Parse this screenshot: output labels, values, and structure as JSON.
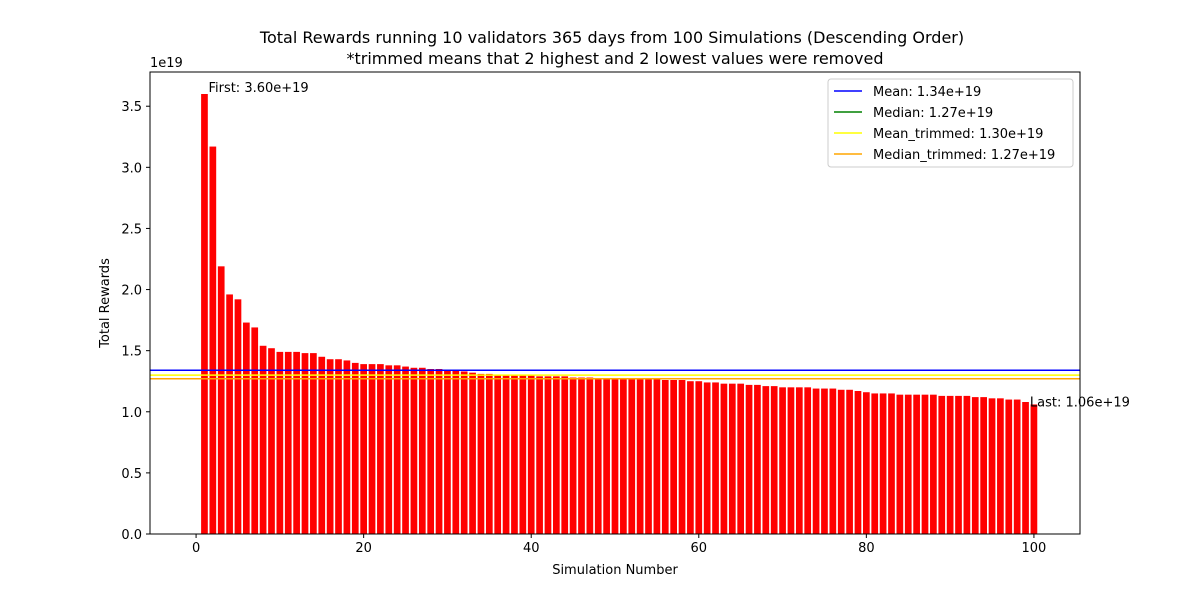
{
  "chart_data": {
    "type": "bar",
    "title": "Total Rewards running 10 validators 365 days from 100 Simulations (Descending Order)",
    "subtitle": "*trimmed means that 2 highest and 2 lowest values were removed",
    "xlabel": "Simulation Number",
    "ylabel": "Total Rewards",
    "y_offset_text": "1e19",
    "y_scale": 1e+19,
    "xlim": [
      -5.5,
      105.5
    ],
    "ylim": [
      0,
      3.78
    ],
    "xticks": [
      0,
      20,
      40,
      60,
      80,
      100
    ],
    "xtick_labels": [
      "0",
      "20",
      "40",
      "60",
      "80",
      "100"
    ],
    "yticks": [
      0,
      0.5,
      1.0,
      1.5,
      2.0,
      2.5,
      3.0,
      3.5
    ],
    "ytick_labels": [
      "0.0",
      "0.5",
      "1.0",
      "1.5",
      "2.0",
      "2.5",
      "3.0",
      "3.5"
    ],
    "grid": false,
    "bar_color": "#ff0000",
    "x": [
      1,
      2,
      3,
      4,
      5,
      6,
      7,
      8,
      9,
      10,
      11,
      12,
      13,
      14,
      15,
      16,
      17,
      18,
      19,
      20,
      21,
      22,
      23,
      24,
      25,
      26,
      27,
      28,
      29,
      30,
      31,
      32,
      33,
      34,
      35,
      36,
      37,
      38,
      39,
      40,
      41,
      42,
      43,
      44,
      45,
      46,
      47,
      48,
      49,
      50,
      51,
      52,
      53,
      54,
      55,
      56,
      57,
      58,
      59,
      60,
      61,
      62,
      63,
      64,
      65,
      66,
      67,
      68,
      69,
      70,
      71,
      72,
      73,
      74,
      75,
      76,
      77,
      78,
      79,
      80,
      81,
      82,
      83,
      84,
      85,
      86,
      87,
      88,
      89,
      90,
      91,
      92,
      93,
      94,
      95,
      96,
      97,
      98,
      99,
      100
    ],
    "values": [
      3.6,
      3.17,
      2.19,
      1.96,
      1.92,
      1.73,
      1.69,
      1.54,
      1.52,
      1.49,
      1.49,
      1.49,
      1.48,
      1.48,
      1.45,
      1.43,
      1.43,
      1.42,
      1.4,
      1.39,
      1.39,
      1.39,
      1.38,
      1.38,
      1.37,
      1.36,
      1.36,
      1.35,
      1.35,
      1.34,
      1.34,
      1.33,
      1.32,
      1.31,
      1.31,
      1.3,
      1.3,
      1.3,
      1.3,
      1.3,
      1.29,
      1.29,
      1.29,
      1.29,
      1.28,
      1.28,
      1.28,
      1.27,
      1.27,
      1.27,
      1.27,
      1.27,
      1.27,
      1.27,
      1.27,
      1.26,
      1.26,
      1.26,
      1.25,
      1.25,
      1.24,
      1.24,
      1.23,
      1.23,
      1.23,
      1.22,
      1.22,
      1.21,
      1.21,
      1.2,
      1.2,
      1.2,
      1.2,
      1.19,
      1.19,
      1.19,
      1.18,
      1.18,
      1.17,
      1.16,
      1.15,
      1.15,
      1.15,
      1.14,
      1.14,
      1.14,
      1.14,
      1.14,
      1.13,
      1.13,
      1.13,
      1.13,
      1.12,
      1.12,
      1.11,
      1.11,
      1.1,
      1.1,
      1.08,
      1.06
    ],
    "hlines": [
      {
        "name": "Mean: 1.34e+19",
        "value": 1.34,
        "color": "#0000ff"
      },
      {
        "name": "Median: 1.27e+19",
        "value": 1.27,
        "color": "#008000"
      },
      {
        "name": "Mean_trimmed: 1.30e+19",
        "value": 1.3,
        "color": "#ffff00"
      },
      {
        "name": "Median_trimmed: 1.27e+19",
        "value": 1.27,
        "color": "#ffa500"
      }
    ],
    "legend_position": "top-right",
    "annotations": [
      {
        "text": "First: 3.60e+19",
        "x": 1,
        "y": 3.6,
        "anchor": "first"
      },
      {
        "text": "Last: 1.06e+19",
        "x": 100,
        "y": 1.06,
        "anchor": "last"
      }
    ]
  }
}
